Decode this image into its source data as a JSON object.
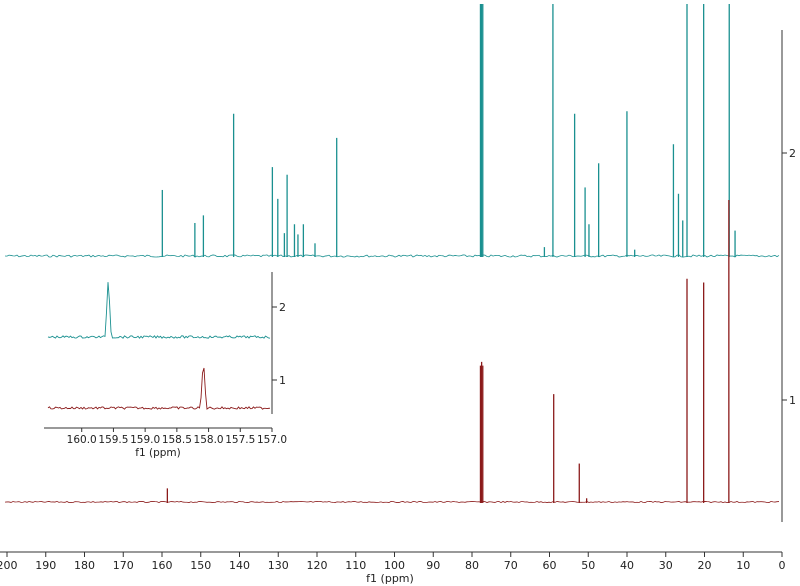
{
  "chart_data": [
    {
      "type": "line",
      "title": "",
      "xlabel": "f1 (ppm)",
      "ylabel": "",
      "xlim": [
        200,
        0
      ],
      "x_ticks": [
        200,
        190,
        180,
        170,
        160,
        150,
        140,
        130,
        120,
        110,
        100,
        90,
        80,
        70,
        60,
        50,
        40,
        30,
        20,
        10,
        0
      ],
      "y_ticks": [
        "2",
        "1"
      ],
      "grid": false,
      "legend": "none",
      "colors": {
        "spectrum_2": "#1a9090",
        "spectrum_1": "#8b1a1a",
        "axis": "#333333"
      },
      "series": [
        {
          "name": "2",
          "peaks_ppm": [
            {
              "x": 159.4,
              "h": 0.52
            },
            {
              "x": 151.0,
              "h": 0.26
            },
            {
              "x": 148.8,
              "h": 0.32
            },
            {
              "x": 141.0,
              "h": 1.12
            },
            {
              "x": 131.0,
              "h": 0.7
            },
            {
              "x": 129.6,
              "h": 0.45
            },
            {
              "x": 127.9,
              "h": 0.18
            },
            {
              "x": 127.2,
              "h": 0.64
            },
            {
              "x": 125.3,
              "h": 0.25
            },
            {
              "x": 124.4,
              "h": 0.17
            },
            {
              "x": 123.0,
              "h": 0.25
            },
            {
              "x": 120.0,
              "h": 0.1
            },
            {
              "x": 114.4,
              "h": 0.93
            },
            {
              "x": 77.3,
              "h": 2.2
            },
            {
              "x": 77.0,
              "h": 2.2
            },
            {
              "x": 76.7,
              "h": 2.2
            },
            {
              "x": 60.8,
              "h": 0.07
            },
            {
              "x": 58.6,
              "h": 2.2
            },
            {
              "x": 53.0,
              "h": 1.12
            },
            {
              "x": 50.3,
              "h": 0.54
            },
            {
              "x": 49.3,
              "h": 0.25
            },
            {
              "x": 46.8,
              "h": 0.73
            },
            {
              "x": 39.5,
              "h": 1.14
            },
            {
              "x": 37.5,
              "h": 0.05
            },
            {
              "x": 27.5,
              "h": 0.88
            },
            {
              "x": 26.2,
              "h": 0.49
            },
            {
              "x": 25.1,
              "h": 0.28
            },
            {
              "x": 24.0,
              "h": 2.2
            },
            {
              "x": 19.7,
              "h": 2.2
            },
            {
              "x": 13.1,
              "h": 2.2
            },
            {
              "x": 11.6,
              "h": 0.2
            }
          ]
        },
        {
          "name": "1",
          "peaks_ppm": [
            {
              "x": 158.1,
              "h": 0.11
            },
            {
              "x": 77.3,
              "h": 1.1
            },
            {
              "x": 77.0,
              "h": 1.13
            },
            {
              "x": 76.7,
              "h": 1.1
            },
            {
              "x": 58.4,
              "h": 0.87
            },
            {
              "x": 51.8,
              "h": 0.31
            },
            {
              "x": 49.9,
              "h": 0.03
            },
            {
              "x": 24.0,
              "h": 1.8
            },
            {
              "x": 19.7,
              "h": 1.77
            },
            {
              "x": 13.2,
              "h": 2.5
            }
          ]
        }
      ]
    },
    {
      "type": "line",
      "title": "",
      "xlabel": "f1 (ppm)",
      "ylabel": "",
      "xlim": [
        160.5,
        157.0
      ],
      "x_ticks": [
        "160.0",
        "159.5",
        "159.0",
        "158.5",
        "158.0",
        "157.5",
        "157.0"
      ],
      "y_ticks": [
        "2",
        "1"
      ],
      "series": [
        {
          "name": "2",
          "peaks_ppm": [
            {
              "x": 159.55,
              "h": 1.0
            }
          ]
        },
        {
          "name": "1",
          "peaks_ppm": [
            {
              "x": 158.05,
              "h": 1.0
            }
          ]
        }
      ]
    }
  ]
}
